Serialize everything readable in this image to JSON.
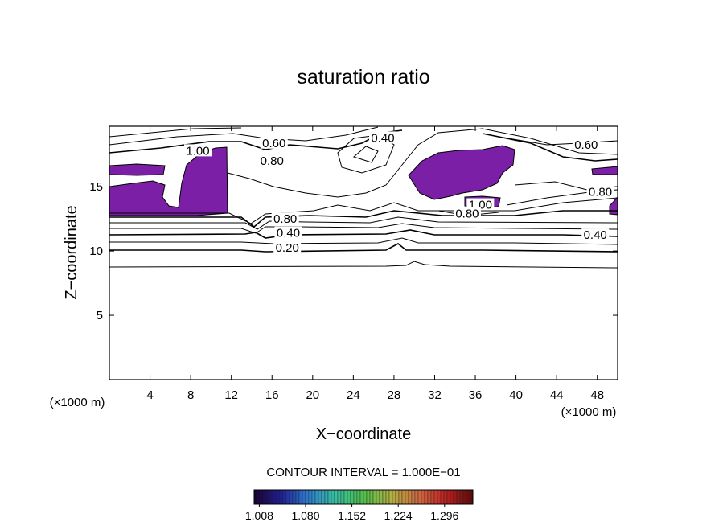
{
  "chart_data": {
    "type": "contour",
    "title": "saturation ratio",
    "x_label": "X−coordinate",
    "y_label": "Z−coordinate",
    "x_unit": "(×1000 m)",
    "y_unit": "(×1000 m)",
    "xlim": [
      0,
      50
    ],
    "ylim": [
      0,
      19.7
    ],
    "xticks": [
      4,
      8,
      12,
      16,
      20,
      24,
      28,
      32,
      36,
      40,
      44,
      48
    ],
    "yticks": [
      5,
      10,
      15
    ],
    "contour_interval_label": "CONTOUR INTERVAL = 1.000E−01",
    "fill_color": "#7a1fa6",
    "contour_labels": [
      {
        "label": "1.00",
        "x": 8.7,
        "y": 17.8
      },
      {
        "label": "0.60",
        "x": 16.2,
        "y": 18.4
      },
      {
        "label": "0.80",
        "x": 16.0,
        "y": 17.0
      },
      {
        "label": "0.40",
        "x": 26.9,
        "y": 18.8
      },
      {
        "label": "0.60",
        "x": 46.9,
        "y": 18.25
      },
      {
        "label": "0.80",
        "x": 48.3,
        "y": 14.6
      },
      {
        "label": "1.00",
        "x": 36.5,
        "y": 13.6
      },
      {
        "label": "0.80",
        "x": 35.2,
        "y": 12.9
      },
      {
        "label": "0.80",
        "x": 17.3,
        "y": 12.5
      },
      {
        "label": "0.40",
        "x": 17.6,
        "y": 11.4
      },
      {
        "label": "0.40",
        "x": 47.8,
        "y": 11.25
      },
      {
        "label": "0.20",
        "x": 17.5,
        "y": 10.25
      }
    ],
    "colorbar": {
      "lim": [
        1.0,
        1.34
      ],
      "ticks": [
        1.008,
        {
          "value": 1.08,
          "label": "1.080"
        },
        1.152,
        1.224,
        1.296
      ],
      "colors": [
        "#1a0030",
        "#1f1f9a",
        "#2e7fd0",
        "#35c0a0",
        "#4fc04a",
        "#b0b040",
        "#d06a40",
        "#c02020",
        "#5a0a0a"
      ]
    }
  }
}
